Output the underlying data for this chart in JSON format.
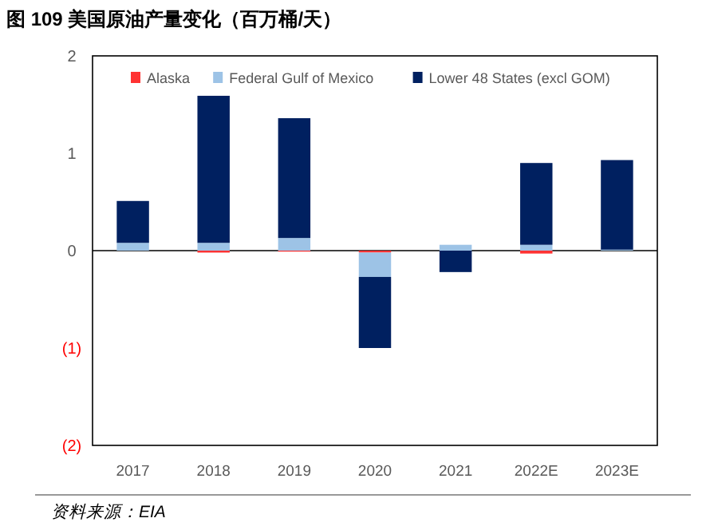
{
  "chart_data": {
    "type": "bar",
    "title": "图 109  美国原油产量变化（百万桶/天）",
    "stacked": true,
    "categories": [
      "2017",
      "2018",
      "2019",
      "2020",
      "2021",
      "2022E",
      "2023E"
    ],
    "series": [
      {
        "name": "Alaska",
        "color": "#ff3333",
        "values": [
          0,
          -0.02,
          -0.01,
          -0.02,
          0,
          -0.03,
          0
        ]
      },
      {
        "name": "Federal Gulf of Mexico",
        "color": "#9dc3e6",
        "values": [
          0.08,
          0.08,
          0.13,
          -0.25,
          0.06,
          0.06,
          0.01
        ]
      },
      {
        "name": "Lower 48 States (excl GOM)",
        "color": "#002060",
        "values": [
          0.43,
          1.51,
          1.23,
          -0.73,
          -0.22,
          0.84,
          0.92
        ]
      }
    ],
    "ylim": [
      -2,
      2
    ],
    "yticks": [
      {
        "value": -2,
        "label": "(2)"
      },
      {
        "value": -1,
        "label": "(1)"
      },
      0,
      1,
      2
    ],
    "legend": "top",
    "annotations": [
      "资料来源：EIA"
    ]
  }
}
